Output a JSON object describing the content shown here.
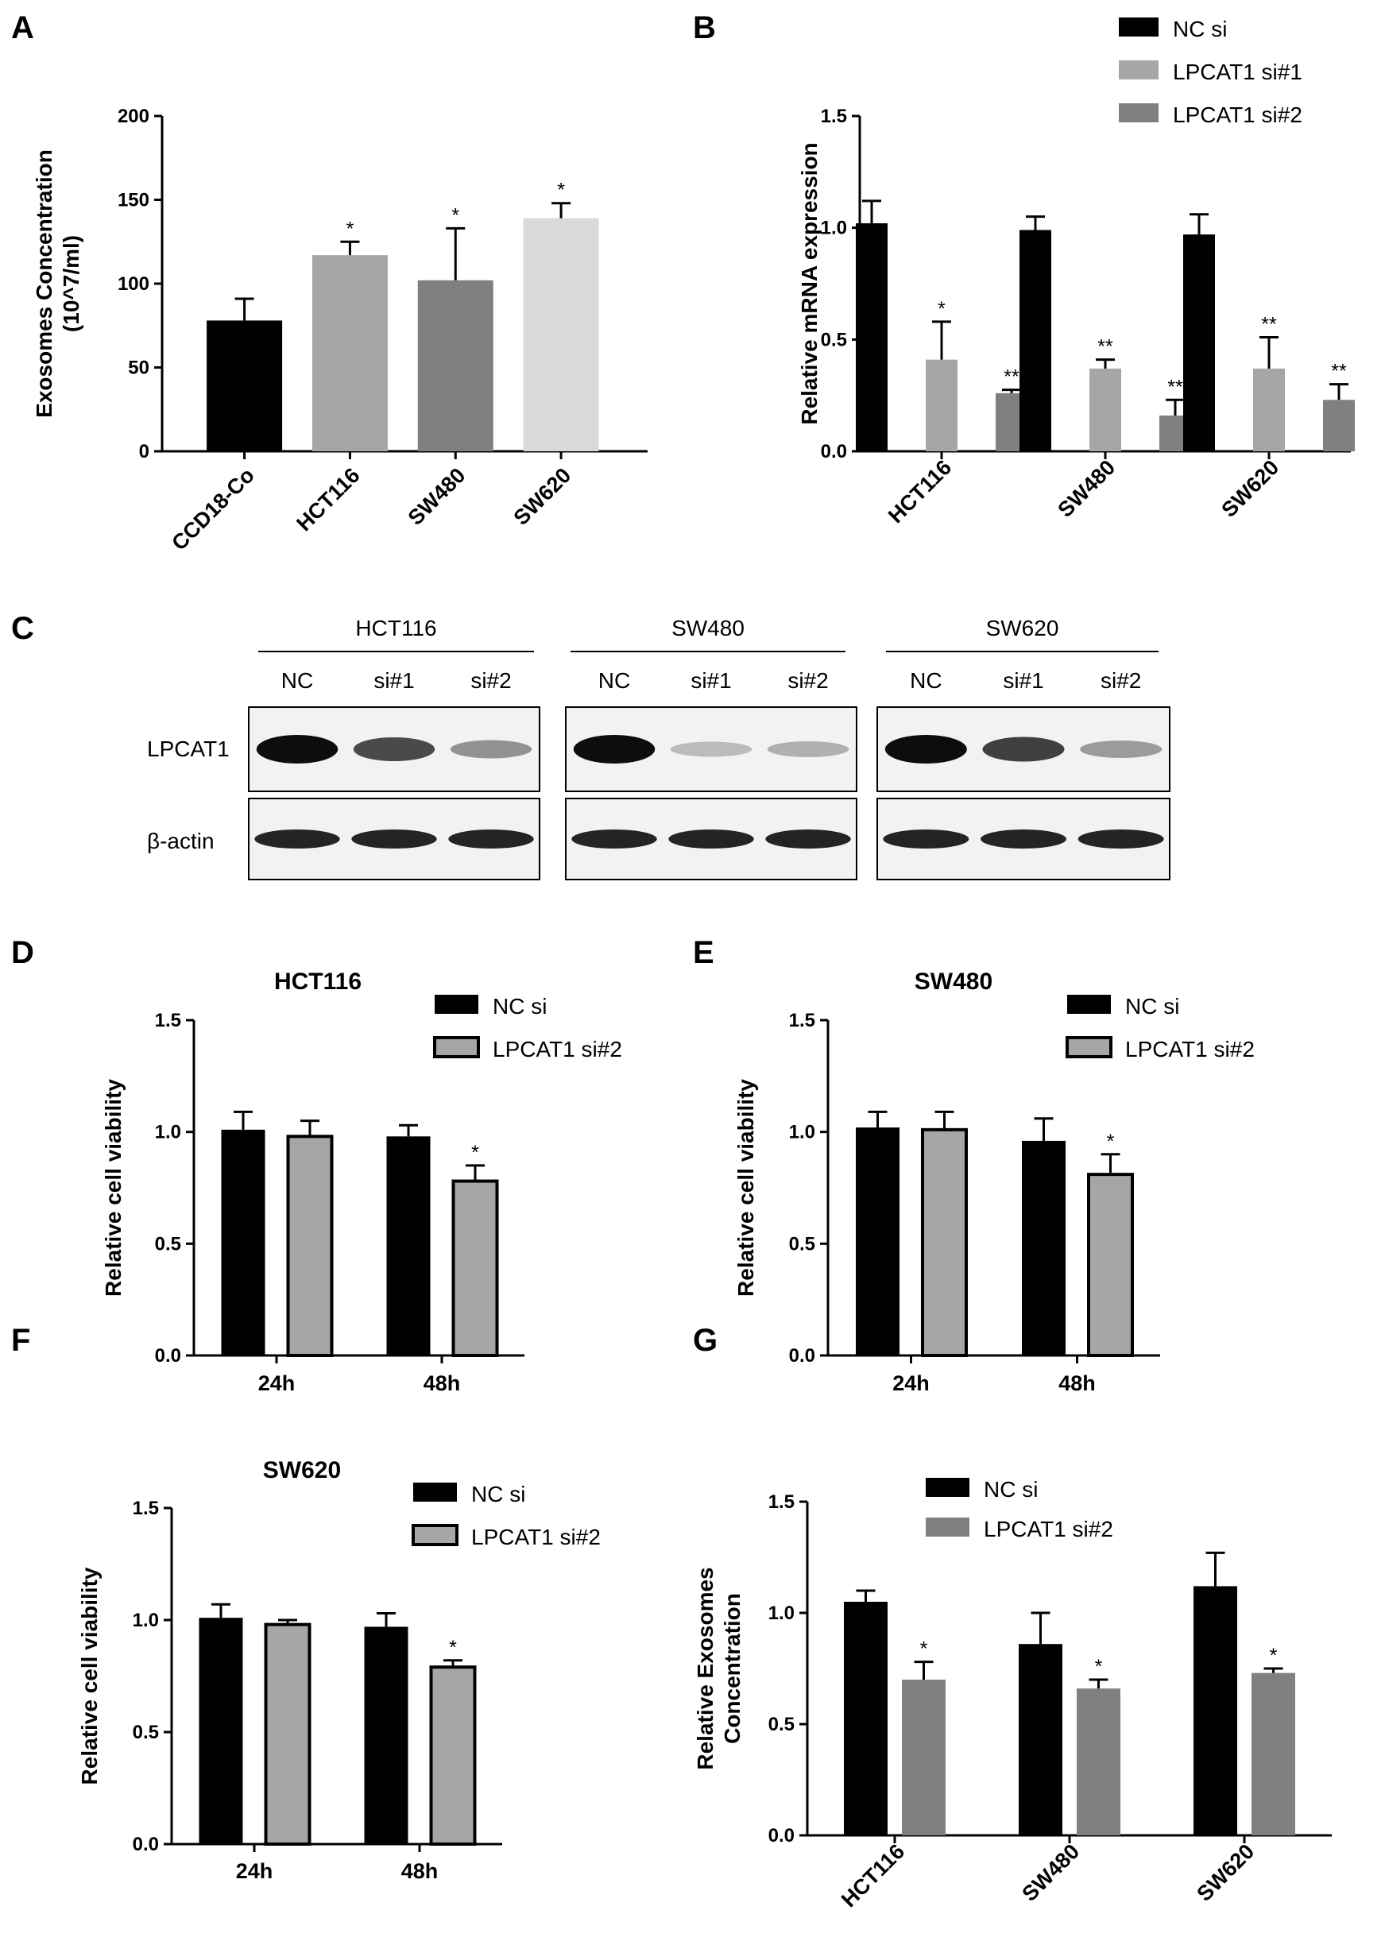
{
  "panel_letters": [
    "A",
    "B",
    "C",
    "D",
    "E",
    "F",
    "G"
  ],
  "colors": {
    "black": "#000000",
    "light_gray": "#a6a6a6",
    "dark_gray": "#808080",
    "lightest_gray": "#d9d9d9"
  },
  "chart_data": [
    {
      "panel": "A",
      "type": "bar",
      "title": "",
      "ylabel": [
        "Exosomes Concentration",
        "(10^7/ml)"
      ],
      "xlabel": "",
      "ylim": [
        0,
        200
      ],
      "yticks": [
        "0",
        "50",
        "100",
        "150",
        "200"
      ],
      "categories": [
        "CCD18-Co",
        "HCT116",
        "SW480",
        "SW620"
      ],
      "values": [
        78,
        117,
        102,
        139
      ],
      "errors": [
        13,
        8,
        31,
        9
      ],
      "bar_colors": [
        "#000000",
        "#a6a6a6",
        "#808080",
        "#d9d9d9"
      ],
      "significance": [
        "",
        "*",
        "*",
        "*"
      ]
    },
    {
      "panel": "B",
      "type": "bar",
      "title": "",
      "ylabel": [
        "Relative mRNA expression"
      ],
      "xlabel": "",
      "ylim": [
        0,
        1.5
      ],
      "yticks": [
        "0.0",
        "0.5",
        "1.0",
        "1.5"
      ],
      "categories": [
        "HCT116",
        "SW480",
        "SW620"
      ],
      "legend": "top-right",
      "series": [
        {
          "name": "NC si",
          "color": "#000000",
          "values": [
            1.02,
            0.99,
            0.97
          ],
          "errors": [
            0.1,
            0.06,
            0.09
          ],
          "significance": [
            "",
            "",
            ""
          ]
        },
        {
          "name": "LPCAT1 si#1",
          "color": "#a6a6a6",
          "values": [
            0.41,
            0.37,
            0.37
          ],
          "errors": [
            0.17,
            0.04,
            0.14
          ],
          "significance": [
            "*",
            "**",
            "**"
          ]
        },
        {
          "name": "LPCAT1 si#2",
          "color": "#808080",
          "values": [
            0.26,
            0.16,
            0.23
          ],
          "errors": [
            0.015,
            0.07,
            0.07
          ],
          "significance": [
            "**",
            "**",
            "**"
          ]
        }
      ]
    },
    {
      "panel": "D",
      "type": "bar",
      "title": "HCT116",
      "ylabel": [
        "Relative cell viability"
      ],
      "xlabel": "",
      "ylim": [
        0,
        1.5
      ],
      "yticks": [
        "0.0",
        "0.5",
        "1.0",
        "1.5"
      ],
      "categories": [
        "24h",
        "48h"
      ],
      "legend": "top-right",
      "series": [
        {
          "name": "NC si",
          "color": "#000000",
          "values": [
            1.01,
            0.98
          ],
          "errors": [
            0.08,
            0.05
          ],
          "significance": [
            "",
            ""
          ]
        },
        {
          "name": "LPCAT1 si#2",
          "color": "#a6a6a6",
          "values": [
            0.98,
            0.78
          ],
          "errors": [
            0.07,
            0.07
          ],
          "significance": [
            "",
            "*"
          ]
        }
      ]
    },
    {
      "panel": "E",
      "type": "bar",
      "title": "SW480",
      "ylabel": [
        "Relative cell viability"
      ],
      "xlabel": "",
      "ylim": [
        0,
        1.5
      ],
      "yticks": [
        "0.0",
        "0.5",
        "1.0",
        "1.5"
      ],
      "categories": [
        "24h",
        "48h"
      ],
      "legend": "top-right",
      "series": [
        {
          "name": "NC si",
          "color": "#000000",
          "values": [
            1.02,
            0.96
          ],
          "errors": [
            0.07,
            0.1
          ],
          "significance": [
            "",
            ""
          ]
        },
        {
          "name": "LPCAT1 si#2",
          "color": "#a6a6a6",
          "values": [
            1.01,
            0.81
          ],
          "errors": [
            0.08,
            0.09
          ],
          "significance": [
            "",
            "*"
          ]
        }
      ]
    },
    {
      "panel": "F",
      "type": "bar",
      "title": "SW620",
      "ylabel": [
        "Relative cell viability"
      ],
      "xlabel": "",
      "ylim": [
        0,
        1.5
      ],
      "yticks": [
        "0.0",
        "0.5",
        "1.0",
        "1.5"
      ],
      "categories": [
        "24h",
        "48h"
      ],
      "legend": "top-right",
      "series": [
        {
          "name": "NC si",
          "color": "#000000",
          "values": [
            1.01,
            0.97
          ],
          "errors": [
            0.06,
            0.06
          ],
          "significance": [
            "",
            ""
          ]
        },
        {
          "name": "LPCAT1 si#2",
          "color": "#a6a6a6",
          "values": [
            0.98,
            0.79
          ],
          "errors": [
            0.02,
            0.03
          ],
          "significance": [
            "",
            "*"
          ]
        }
      ]
    },
    {
      "panel": "G",
      "type": "bar",
      "title": "",
      "ylabel": [
        "Relative Exosomes",
        "Concentration"
      ],
      "xlabel": "",
      "ylim": [
        0,
        1.5
      ],
      "yticks": [
        "0.0",
        "0.5",
        "1.0",
        "1.5"
      ],
      "categories": [
        "HCT116",
        "SW480",
        "SW620"
      ],
      "legend": "top-right",
      "series": [
        {
          "name": "NC si",
          "color": "#000000",
          "values": [
            1.05,
            0.86,
            1.12
          ],
          "errors": [
            0.05,
            0.14,
            0.15
          ],
          "significance": [
            "",
            "",
            ""
          ]
        },
        {
          "name": "LPCAT1 si#2",
          "color": "#808080",
          "values": [
            0.7,
            0.66,
            0.73
          ],
          "errors": [
            0.08,
            0.04,
            0.02
          ],
          "significance": [
            "*",
            "*",
            "*"
          ]
        }
      ]
    }
  ],
  "western_blot": {
    "panel": "C",
    "groups": [
      {
        "name": "HCT116",
        "lanes": [
          "NC",
          "si#1",
          "si#2"
        ],
        "lpcat1_intensity": [
          1.0,
          0.7,
          0.35
        ]
      },
      {
        "name": "SW480",
        "lanes": [
          "NC",
          "si#1",
          "si#2"
        ],
        "lpcat1_intensity": [
          1.0,
          0.15,
          0.2
        ]
      },
      {
        "name": "SW620",
        "lanes": [
          "NC",
          "si#1",
          "si#2"
        ],
        "lpcat1_intensity": [
          1.0,
          0.75,
          0.3
        ]
      }
    ],
    "row_labels": [
      "LPCAT1",
      "β-actin"
    ],
    "actin_intensity": [
      1.0,
      1.0,
      1.0
    ]
  }
}
